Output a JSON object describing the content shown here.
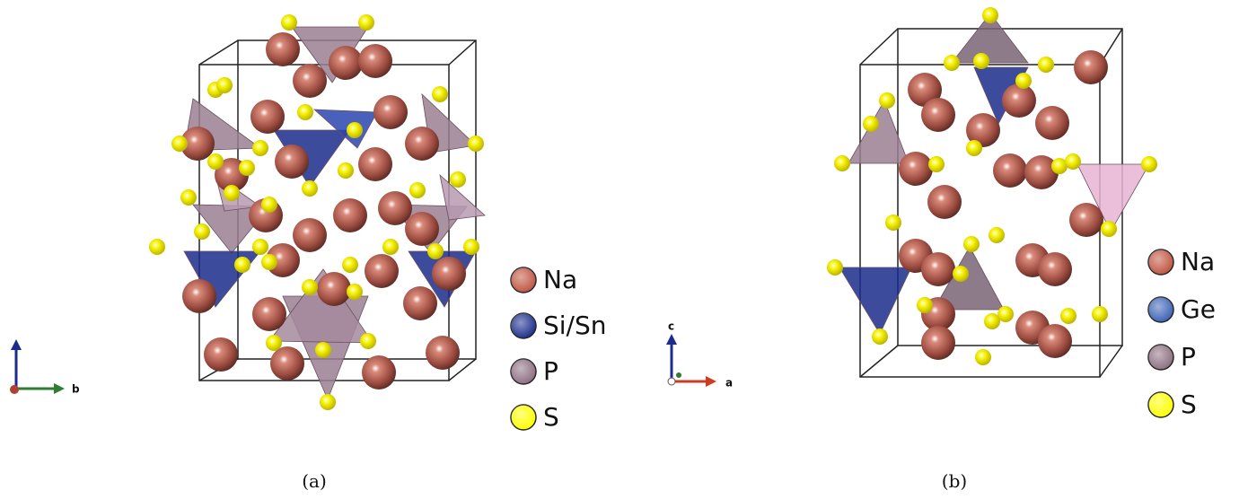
{
  "panels": [
    {
      "caption": "(a)",
      "axes": {
        "right": "b"
      },
      "legend": [
        {
          "label": "Na",
          "color": "#c0533f"
        },
        {
          "label": "Si/Sn",
          "color": "#1b2c8c"
        },
        {
          "label": "P",
          "color": "#8c6e80"
        },
        {
          "label": "S",
          "color": "#ffff00"
        }
      ]
    },
    {
      "caption": "(b)",
      "axes": {
        "up": "c",
        "right": "a"
      },
      "legend": [
        {
          "label": "Na",
          "color": "#c0533f"
        },
        {
          "label": "Ge",
          "color": "#3b62b5"
        },
        {
          "label": "P",
          "color": "#8c6e80"
        },
        {
          "label": "S",
          "color": "#ffff00"
        }
      ]
    }
  ]
}
